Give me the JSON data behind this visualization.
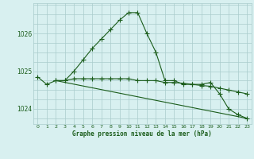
{
  "line1_x": [
    0,
    1,
    2,
    3,
    4,
    5,
    6,
    7,
    8,
    9,
    10,
    11,
    12,
    13,
    14,
    15,
    16,
    17,
    18,
    19,
    20,
    21,
    22,
    23
  ],
  "line1_y": [
    1024.85,
    1024.65,
    1024.75,
    1024.75,
    1025.0,
    1025.3,
    1025.6,
    1025.85,
    1026.1,
    1026.35,
    1026.55,
    1026.55,
    1026.0,
    1025.5,
    1024.75,
    1024.75,
    1024.65,
    1024.65,
    1024.65,
    1024.7,
    1024.4,
    1024.0,
    1023.85,
    1023.75
  ],
  "line2_x": [
    2,
    3,
    4,
    5,
    6,
    7,
    8,
    9,
    10,
    11,
    12,
    13,
    14,
    15,
    16,
    17,
    18,
    19,
    20,
    21,
    22,
    23
  ],
  "line2_y": [
    1024.75,
    1024.75,
    1024.8,
    1024.8,
    1024.8,
    1024.8,
    1024.8,
    1024.8,
    1024.8,
    1024.75,
    1024.75,
    1024.75,
    1024.7,
    1024.7,
    1024.68,
    1024.65,
    1024.62,
    1024.6,
    1024.55,
    1024.5,
    1024.45,
    1024.4
  ],
  "line3_x": [
    2,
    23
  ],
  "line3_y": [
    1024.75,
    1023.75
  ],
  "line_color": "#1a5c1a",
  "bg_color": "#d8f0f0",
  "grid_color": "#aacccc",
  "xlabel": "Graphe pression niveau de la mer (hPa)",
  "xlabel_color": "#1a5c1a",
  "xlim": [
    -0.5,
    23.5
  ],
  "ylim": [
    1023.6,
    1026.8
  ],
  "yticks": [
    1024,
    1025,
    1026
  ],
  "xticks": [
    0,
    1,
    2,
    3,
    4,
    5,
    6,
    7,
    8,
    9,
    10,
    11,
    12,
    13,
    14,
    15,
    16,
    17,
    18,
    19,
    20,
    21,
    22,
    23
  ],
  "marker_size": 3.0,
  "linewidth": 0.8
}
